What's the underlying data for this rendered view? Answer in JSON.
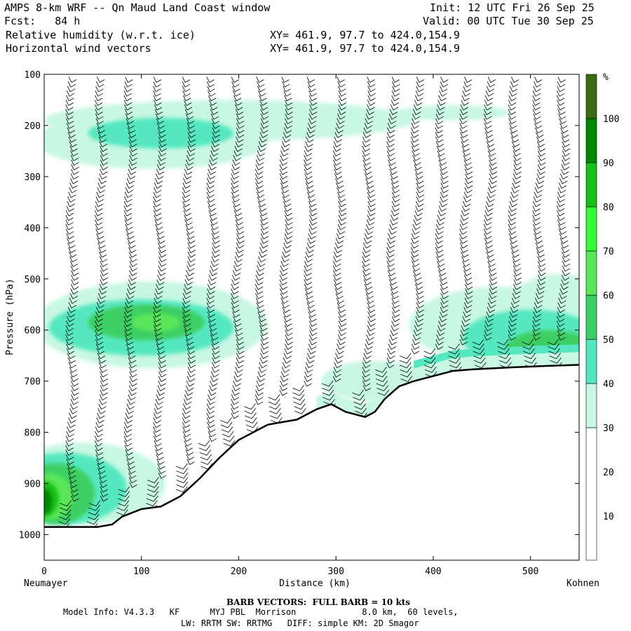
{
  "header": {
    "title": "AMPS 8-km WRF -- Qn Maud Land Coast window",
    "fcst": "Fcst:   84 h",
    "init": "Init: 12 UTC Fri 26 Sep 25",
    "valid": "Valid: 00 UTC Tue 30 Sep 25",
    "field1": "Relative humidity (w.r.t. ice)",
    "field2": "Horizontal wind vectors",
    "xy1": "XY= 461.9, 97.7 to 424.0,154.9",
    "xy2": "XY= 461.9, 97.7 to 424.0,154.9"
  },
  "footer": {
    "barb_note": "BARB VECTORS:  FULL BARB = 10 kts",
    "model_info": "Model Info: V4.3.3   KF      MYJ PBL  Morrison             8.0 km,  60 levels,",
    "physics": "LW: RRTM SW: RRTMG   DIFF: simple KM: 2D Smagor"
  },
  "chart_data": {
    "type": "cross-section",
    "title": "Relative humidity (w.r.t. ice) and horizontal wind vectors",
    "xlabel": "Distance (km)",
    "ylabel": "Pressure (hPa)",
    "xlim": [
      0,
      550
    ],
    "ylim": [
      1050,
      100
    ],
    "x_ticks": [
      0,
      100,
      200,
      300,
      400,
      500
    ],
    "y_ticks": [
      100,
      200,
      300,
      400,
      500,
      600,
      700,
      800,
      900,
      1000
    ],
    "x_start_label": "Neumayer",
    "x_end_label": "Kohnen",
    "colorbar": {
      "unit": "%",
      "levels": [
        10,
        20,
        30,
        40,
        50,
        60,
        70,
        80,
        90,
        100
      ],
      "bands": [
        {
          "from": 0,
          "to": 30,
          "color": "#ffffff"
        },
        {
          "from": 30,
          "to": 40,
          "color": "#c8f7e3"
        },
        {
          "from": 40,
          "to": 50,
          "color": "#55e8c0"
        },
        {
          "from": 50,
          "to": 60,
          "color": "#3ccf64"
        },
        {
          "from": 60,
          "to": 70,
          "color": "#5ae65a"
        },
        {
          "from": 70,
          "to": 80,
          "color": "#34ff34"
        },
        {
          "from": 80,
          "to": 90,
          "color": "#16c016"
        },
        {
          "from": 90,
          "to": 100,
          "color": "#008800"
        },
        {
          "from": 100,
          "to": 110,
          "color": "#3a6b10"
        }
      ]
    },
    "terrain_surface_pressure": {
      "x": [
        0,
        20,
        40,
        55,
        70,
        80,
        100,
        120,
        140,
        160,
        180,
        200,
        230,
        260,
        280,
        295,
        310,
        330,
        340,
        350,
        365,
        380,
        400,
        420,
        440,
        480,
        520,
        550
      ],
      "p": [
        985,
        985,
        985,
        985,
        980,
        965,
        950,
        945,
        925,
        890,
        850,
        815,
        785,
        775,
        755,
        745,
        760,
        770,
        760,
        735,
        710,
        700,
        690,
        680,
        677,
        673,
        670,
        668
      ]
    },
    "rh_regions": [
      {
        "level": 30,
        "desc": "upper layer band 150-230 hPa, 0-400 km"
      },
      {
        "level": 40,
        "desc": "upper maximum 180-260 hPa, 40-170 km"
      },
      {
        "level": 50,
        "desc": "mid-level maximum 520-640 hPa, 60-160 km"
      },
      {
        "level": 90,
        "desc": "boundary layer maximum 880-985 hPa near Neumayer"
      },
      {
        "level": 70,
        "desc": "near-surface moist layer along slope 380-550 km"
      }
    ],
    "barb_columns_km": [
      25,
      55,
      85,
      115,
      145,
      170,
      195,
      220,
      245,
      270,
      300,
      330,
      355,
      380,
      405,
      430,
      455,
      480,
      505,
      530
    ],
    "full_barb_kts": 10
  }
}
